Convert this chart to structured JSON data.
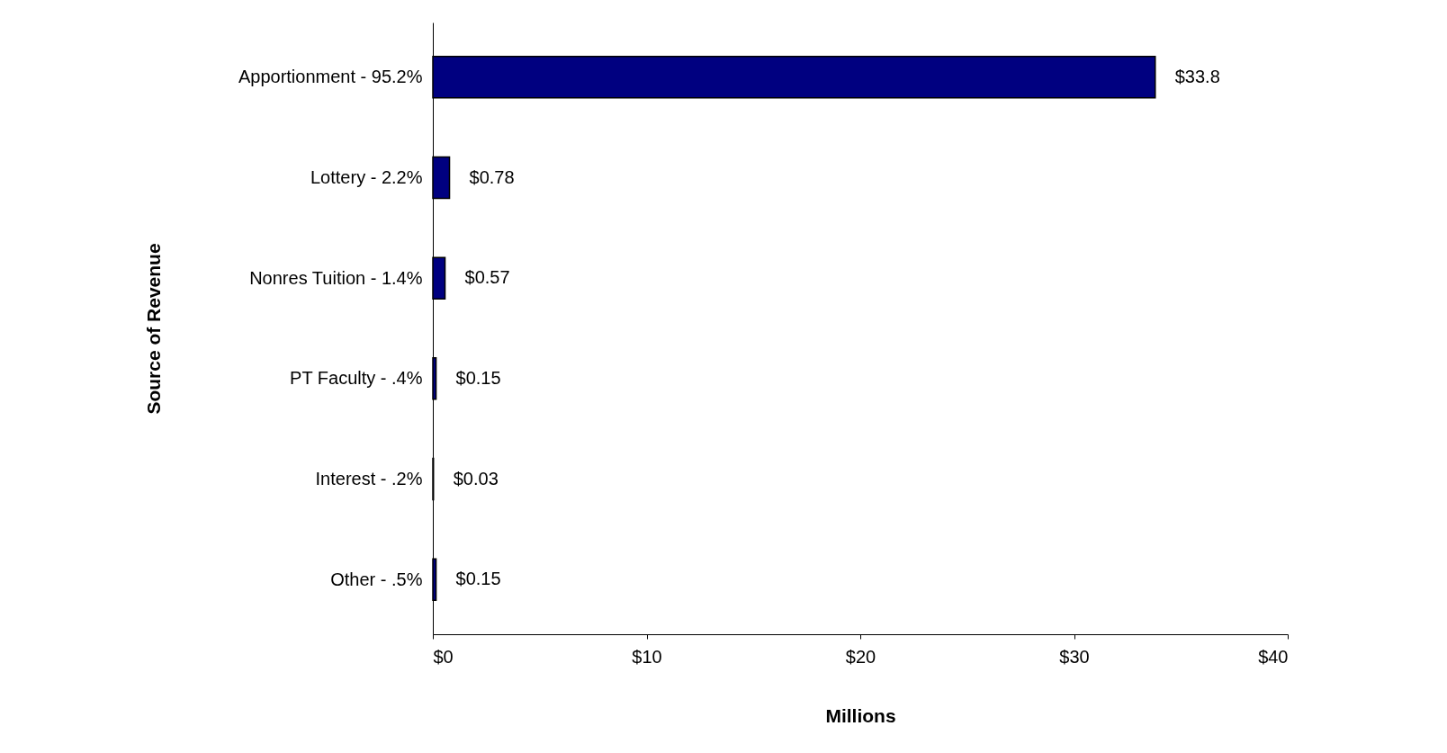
{
  "chart_data": {
    "type": "bar",
    "orientation": "horizontal",
    "xlabel": "Millions",
    "ylabel": "Source of Revenue",
    "categories": [
      "Apportionment - 95.2%",
      "Lottery - 2.2%",
      "Nonres Tuition - 1.4%",
      "PT Faculty - .4%",
      "Interest - .2%",
      "Other - .5%"
    ],
    "values": [
      33.8,
      0.78,
      0.57,
      0.15,
      0.03,
      0.15
    ],
    "value_labels": [
      "$33.8",
      "$0.78",
      "$0.57",
      "$0.15",
      "$0.03",
      "$0.15"
    ],
    "color": "#000080",
    "xlim": [
      0,
      40
    ],
    "xticks": [
      {
        "value": 0,
        "label": "$0"
      },
      {
        "value": 10,
        "label": "$10"
      },
      {
        "value": 20,
        "label": "$20"
      },
      {
        "value": 30,
        "label": "$30"
      },
      {
        "value": 40,
        "label": "$40"
      }
    ],
    "grid": false
  }
}
